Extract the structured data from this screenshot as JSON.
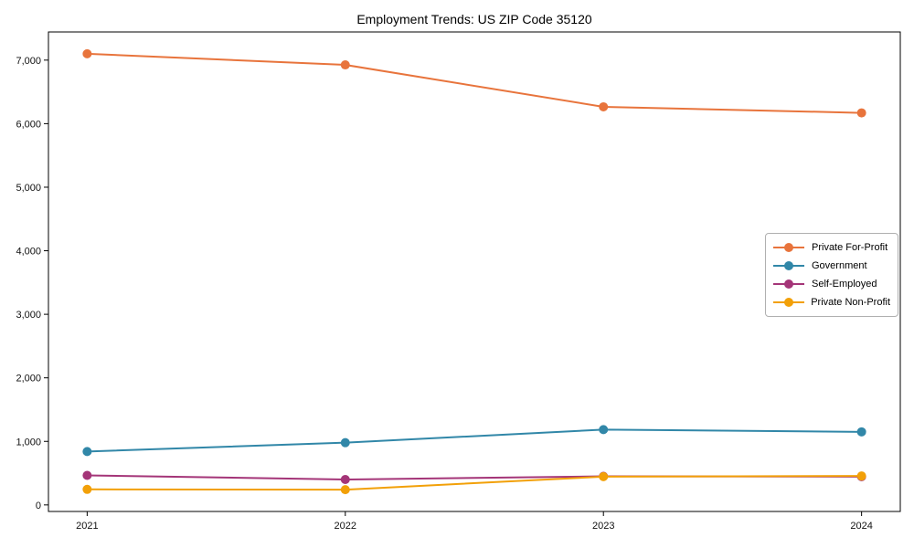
{
  "figure": {
    "background_color": "#ffffff",
    "axis_color": "#000000"
  },
  "chart_data": {
    "type": "line",
    "title": "Employment Trends: US ZIP Code 35120",
    "categories": [
      "2021",
      "2022",
      "2023",
      "2024"
    ],
    "series": [
      {
        "name": "Private For-Profit",
        "color": "#e8743c",
        "values": [
          7100,
          6925,
          6265,
          6170
        ]
      },
      {
        "name": "Government",
        "color": "#3187a8",
        "values": [
          840,
          980,
          1185,
          1150
        ]
      },
      {
        "name": "Self-Employed",
        "color": "#a43578",
        "values": [
          465,
          400,
          450,
          445
        ]
      },
      {
        "name": "Private Non-Profit",
        "color": "#f2a008",
        "values": [
          245,
          240,
          445,
          455
        ]
      }
    ],
    "xlabel": "",
    "ylabel": "",
    "ylim": [
      -103,
      7443
    ],
    "yticks": [
      0,
      1000,
      2000,
      3000,
      4000,
      5000,
      6000,
      7000
    ],
    "ytick_labels": [
      "0",
      "1,000",
      "2,000",
      "3,000",
      "4,000",
      "5,000",
      "6,000",
      "7,000"
    ],
    "grid": false,
    "axis_box": true,
    "legend_position": "center right",
    "marker": "circle",
    "line_width": 2
  }
}
